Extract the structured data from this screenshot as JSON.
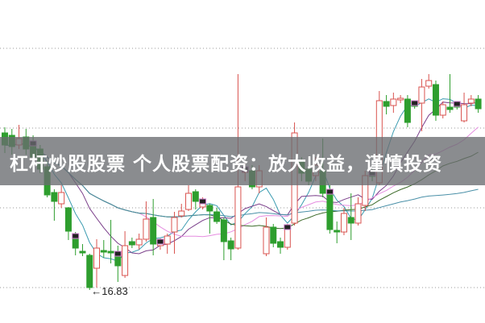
{
  "caption": "杠杆炒股股票 个人股票配资：放大收益，谨慎投资",
  "chart_data": {
    "type": "candlestick",
    "title": "",
    "xlabel": "",
    "ylabel": "",
    "grid": "horizontal dotted",
    "colors": {
      "up": "#d9534f",
      "down": "#2e9e2e",
      "grid": "#9a9a9a"
    },
    "annotation": {
      "label": "16.83",
      "arrow": "←",
      "target": "lowest low"
    },
    "candles": [
      [
        18.78,
        18.85,
        18.53,
        18.63
      ],
      [
        18.75,
        18.83,
        18.51,
        18.61
      ],
      [
        18.63,
        18.88,
        18.58,
        18.71
      ],
      [
        18.73,
        18.83,
        18.51,
        18.58
      ],
      [
        18.65,
        18.75,
        18.43,
        18.48
      ],
      [
        18.58,
        18.63,
        18.28,
        18.33
      ],
      [
        18.36,
        18.43,
        17.98,
        18.01
      ],
      [
        18.04,
        18.08,
        17.69,
        17.93
      ],
      [
        17.9,
        18.13,
        17.85,
        18.04
      ],
      [
        17.85,
        17.86,
        17.45,
        17.56
      ],
      [
        17.5,
        17.55,
        17.26,
        17.35
      ],
      [
        17.31,
        17.4,
        17.25,
        17.29
      ],
      [
        17.26,
        17.28,
        16.83,
        16.86
      ],
      [
        17.1,
        17.46,
        16.86,
        17.35
      ],
      [
        17.32,
        17.45,
        17.23,
        17.3
      ],
      [
        17.31,
        17.7,
        17.16,
        17.29
      ],
      [
        17.28,
        17.38,
        16.93,
        17.13
      ],
      [
        17.01,
        17.56,
        16.98,
        17.38
      ],
      [
        17.43,
        17.48,
        17.35,
        17.39
      ],
      [
        17.39,
        17.53,
        17.33,
        17.46
      ],
      [
        17.46,
        17.93,
        17.43,
        17.71
      ],
      [
        17.73,
        17.96,
        17.26,
        17.4
      ],
      [
        17.38,
        17.47,
        17.33,
        17.43
      ],
      [
        17.4,
        17.53,
        17.28,
        17.5
      ],
      [
        17.55,
        17.8,
        17.28,
        17.73
      ],
      [
        17.75,
        17.9,
        17.73,
        17.81
      ],
      [
        17.83,
        18.13,
        17.81,
        18.03
      ],
      [
        18.05,
        18.08,
        17.83,
        17.93
      ],
      [
        17.86,
        17.98,
        17.83,
        17.93
      ],
      [
        17.88,
        17.9,
        17.53,
        17.81
      ],
      [
        17.8,
        17.85,
        17.65,
        17.68
      ],
      [
        17.7,
        17.73,
        17.2,
        17.43
      ],
      [
        17.44,
        17.48,
        17.2,
        17.34
      ],
      [
        17.35,
        19.51,
        17.33,
        18.11
      ],
      [
        18.29,
        18.43,
        18.18,
        18.33
      ],
      [
        18.31,
        18.38,
        18.08,
        18.11
      ],
      [
        18.11,
        18.38,
        18.03,
        18.31
      ],
      [
        17.28,
        17.73,
        17.25,
        17.61
      ],
      [
        17.61,
        17.65,
        17.36,
        17.41
      ],
      [
        17.43,
        17.48,
        17.28,
        17.36
      ],
      [
        17.36,
        17.65,
        17.33,
        17.61
      ],
      [
        17.66,
        18.91,
        17.63,
        18.78
      ],
      [
        18.43,
        18.48,
        18.18,
        18.28
      ],
      [
        18.33,
        18.38,
        18.13,
        18.18
      ],
      [
        18.25,
        18.48,
        18.18,
        18.38
      ],
      [
        18.31,
        18.71,
        17.98,
        18.03
      ],
      [
        18.05,
        18.13,
        17.53,
        17.58
      ],
      [
        17.57,
        17.68,
        17.41,
        17.55
      ],
      [
        17.55,
        17.85,
        17.51,
        17.78
      ],
      [
        17.73,
        18.03,
        17.45,
        17.66
      ],
      [
        17.66,
        17.98,
        17.63,
        17.9
      ],
      [
        17.88,
        18.31,
        17.81,
        18.25
      ],
      [
        18.28,
        18.33,
        18.18,
        18.24
      ],
      [
        18.16,
        19.3,
        18.13,
        19.18
      ],
      [
        19.17,
        19.25,
        19.01,
        19.11
      ],
      [
        19.12,
        19.28,
        19.03,
        19.2
      ],
      [
        19.19,
        19.25,
        19.15,
        19.21
      ],
      [
        19.2,
        19.25,
        18.85,
        18.91
      ],
      [
        19.15,
        19.18,
        19.08,
        19.11
      ],
      [
        19.15,
        19.45,
        18.8,
        19.35
      ],
      [
        19.36,
        19.51,
        19.33,
        19.43
      ],
      [
        19.38,
        19.43,
        18.93,
        19.0
      ],
      [
        19.0,
        19.17,
        18.96,
        19.13
      ],
      [
        19.1,
        19.51,
        19.03,
        19.07
      ],
      [
        19.14,
        19.17,
        19.07,
        19.1
      ],
      [
        18.93,
        19.28,
        18.91,
        19.13
      ],
      [
        19.15,
        19.25,
        19.11,
        19.2
      ],
      [
        19.2,
        19.25,
        19.03,
        19.08
      ]
    ],
    "candle_format": [
      "open",
      "high",
      "low",
      "close"
    ]
  }
}
